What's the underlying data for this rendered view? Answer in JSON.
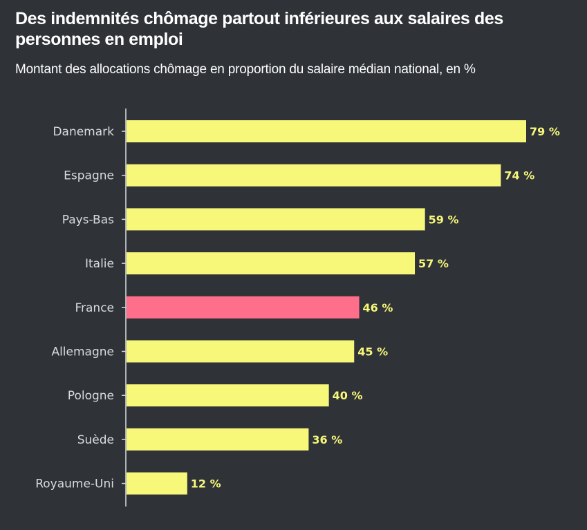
{
  "title": "Des indemnités chômage partout inférieures aux salaires des personnes en emploi",
  "subtitle": "Montant des allocations chômage en proportion du salaire médian national, en %",
  "colors": {
    "background": "#2f3337",
    "bar": "#f7f77a",
    "highlight": "#ff6f8c",
    "text": "#d9dcde",
    "axis": "#d9dcde"
  },
  "chart_data": {
    "type": "bar",
    "orientation": "horizontal",
    "categories": [
      "Danemark",
      "Espagne",
      "Pays-Bas",
      "Italie",
      "France",
      "Allemagne",
      "Pologne",
      "Suède",
      "Royaume-Uni"
    ],
    "values": [
      79,
      74,
      59,
      57,
      46,
      45,
      40,
      36,
      12
    ],
    "value_labels": [
      "79 %",
      "74 %",
      "59 %",
      "57 %",
      "46 %",
      "45 %",
      "40 %",
      "36 %",
      "12 %"
    ],
    "highlight": "France",
    "xlim": [
      0,
      79
    ],
    "grid": false,
    "legend": "none"
  }
}
